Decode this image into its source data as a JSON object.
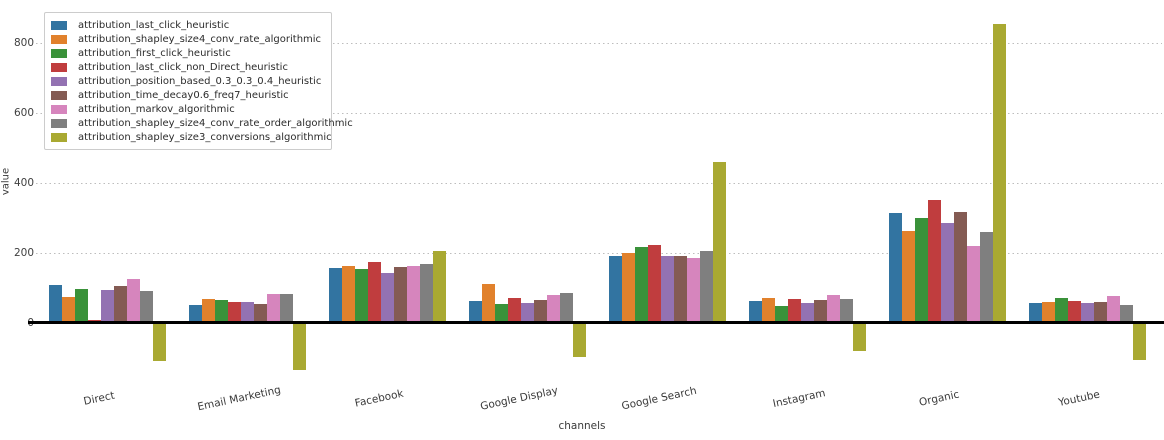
{
  "chart_data": {
    "type": "bar",
    "title": "",
    "xlabel": "channels",
    "ylabel": "value",
    "grid": "horizontal-dotted",
    "legend_position": "upper-left",
    "ylim": [
      -160,
      900
    ],
    "yticks": [
      0,
      200,
      400,
      600,
      800
    ],
    "categories": [
      "Direct",
      "Email Marketing",
      "Facebook",
      "Google Display",
      "Google Search",
      "Instagram",
      "Organic",
      "Youtube"
    ],
    "series": [
      {
        "name": "attribution_last_click_heuristic",
        "color": "#3274a1",
        "values": [
          110,
          51,
          157,
          63,
          191,
          63,
          314,
          57
        ]
      },
      {
        "name": "attribution_shapley_size4_conv_rate_algorithmic",
        "color": "#e1812c",
        "values": [
          74,
          69,
          162,
          111,
          200,
          71,
          263,
          60
        ]
      },
      {
        "name": "attribution_first_click_heuristic",
        "color": "#3a923a",
        "values": [
          97,
          66,
          154,
          55,
          217,
          49,
          300,
          71
        ]
      },
      {
        "name": "attribution_last_click_non_Direct_heuristic",
        "color": "#c03d3e",
        "values": [
          10,
          60,
          174,
          71,
          224,
          69,
          351,
          63
        ]
      },
      {
        "name": "attribution_position_based_0.3_0.3_0.4_heuristic",
        "color": "#9372b2",
        "values": [
          95,
          60,
          143,
          57,
          191,
          57,
          286,
          57
        ]
      },
      {
        "name": "attribution_time_decay0.6_freq7_heuristic",
        "color": "#845b53",
        "values": [
          107,
          55,
          160,
          66,
          191,
          66,
          317,
          60
        ]
      },
      {
        "name": "attribution_markov_algorithmic",
        "color": "#d685bd",
        "values": [
          127,
          83,
          162,
          80,
          185,
          80,
          220,
          77
        ]
      },
      {
        "name": "attribution_shapley_size4_conv_rate_order_algorithmic",
        "color": "#7f7f7f",
        "values": [
          92,
          83,
          169,
          86,
          206,
          69,
          260,
          51
        ]
      },
      {
        "name": "attribution_shapley_size3_conversions_algorithmic",
        "color": "#a9a932",
        "values": [
          -106,
          -131,
          206,
          -94,
          460,
          -77,
          854,
          -103
        ]
      }
    ]
  }
}
